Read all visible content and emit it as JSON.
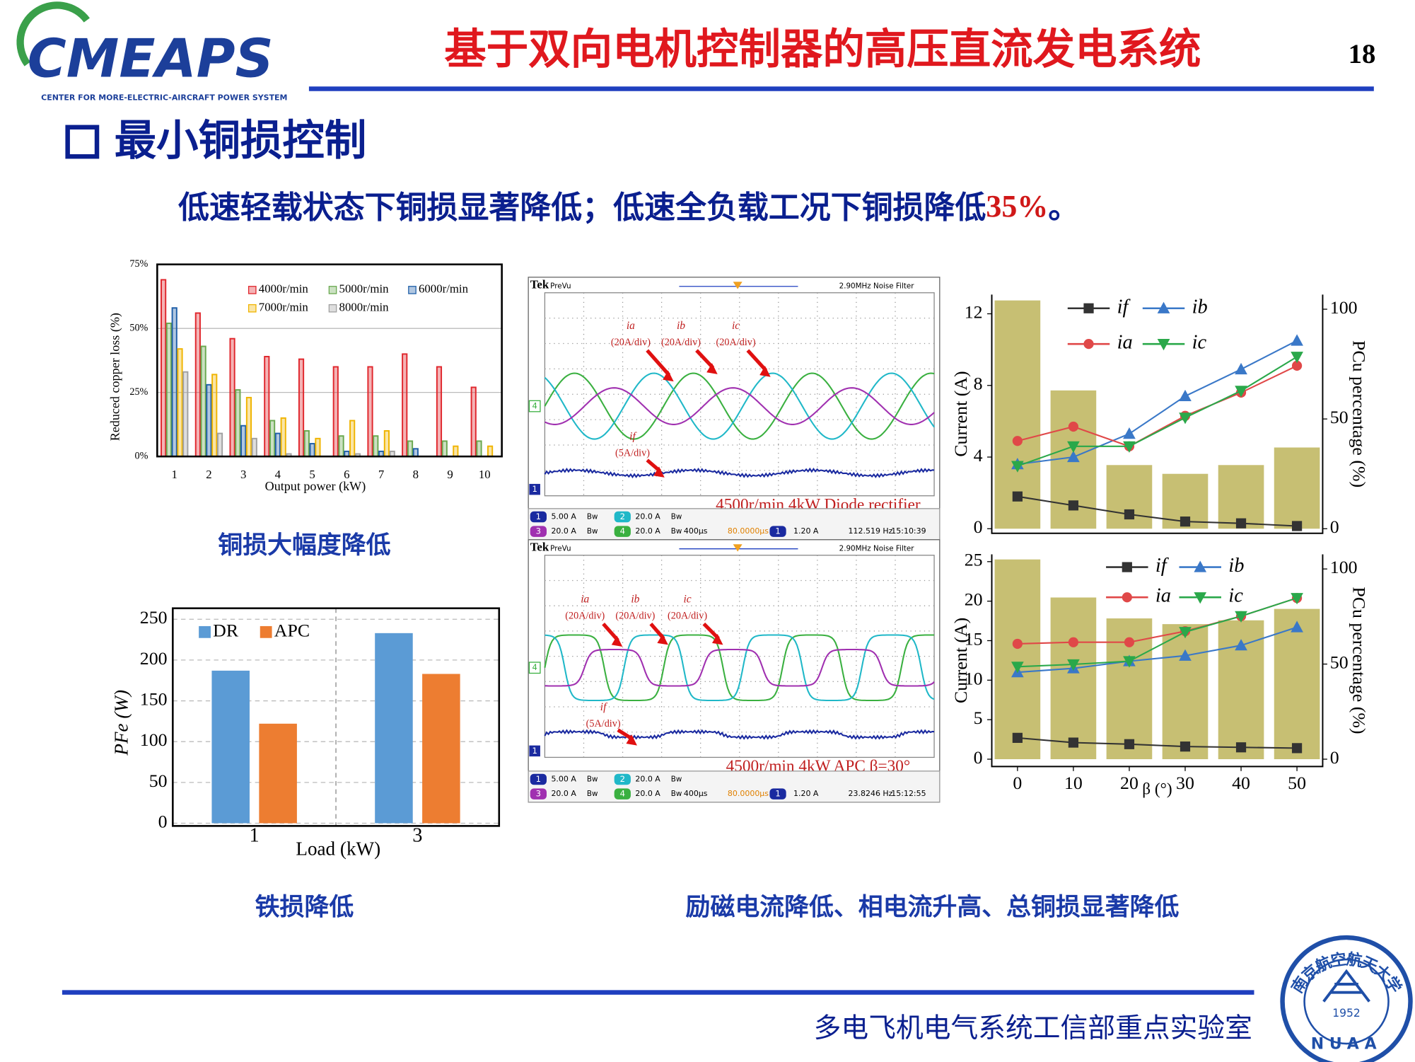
{
  "header": {
    "logo": "CMEAPS",
    "logo_subtitle": "CENTER FOR  MORE-ELECTRIC-AIRCRAFT POWER SYSTEM",
    "title": "基于双向电机控制器的高压直流发电系统",
    "page_number": "18"
  },
  "section_title": "最小铜损控制",
  "summary": {
    "text": "低速轻载状态下铜损显著降低；低速全负载工况下铜损降低",
    "highlight": "35%",
    "end": "。"
  },
  "charts": [
    {
      "type": "bar",
      "xlabel": "Output power (kW)",
      "ylabel": "Reduced copper loss (%)",
      "categories": [
        "1",
        "2",
        "3",
        "4",
        "5",
        "6",
        "7",
        "8",
        "9",
        "10"
      ],
      "ylim": [
        0,
        75
      ],
      "yticks": [
        {
          "value": 0,
          "label": "0%"
        },
        {
          "value": 25,
          "label": "25%"
        },
        {
          "value": 50,
          "label": "50%"
        },
        {
          "value": 75,
          "label": "75%"
        }
      ],
      "grid": true,
      "series": [
        {
          "name": "4000r/min",
          "color": "#e0262c",
          "values": [
            69,
            56,
            46,
            39,
            38,
            35,
            35,
            40,
            35,
            27
          ]
        },
        {
          "name": "5000r/min",
          "color": "#6aa84f",
          "values": [
            52,
            43,
            26,
            14,
            10,
            8,
            8,
            6,
            6,
            6
          ]
        },
        {
          "name": "6000r/min",
          "color": "#1f5fa8",
          "values": [
            58,
            28,
            12,
            9,
            5,
            2,
            2,
            3,
            null,
            null
          ]
        },
        {
          "name": "7000r/min",
          "color": "#f0b400",
          "values": [
            42,
            32,
            23,
            15,
            7,
            14,
            10,
            null,
            4,
            4
          ]
        },
        {
          "name": "8000r/min",
          "color": "#a0a0a0",
          "values": [
            33,
            9,
            7,
            1,
            0,
            1,
            2,
            null,
            null,
            null
          ]
        }
      ]
    },
    {
      "type": "bar",
      "xlabel": "Load (kW)",
      "ylabel": "PFe (W)",
      "categories": [
        "1",
        "3"
      ],
      "ylim": [
        0,
        250
      ],
      "yticks": [
        0,
        50,
        100,
        150,
        200,
        250
      ],
      "grid": true,
      "series": [
        {
          "name": "DR",
          "color": "#5b9bd5",
          "values": [
            187,
            233
          ]
        },
        {
          "name": "APC",
          "color": "#ed7d31",
          "values": [
            122,
            183
          ]
        }
      ]
    },
    {
      "type": "combo",
      "ylabel": "Current (A)",
      "y2label": "PCu percentage (%)",
      "x": [
        0,
        10,
        20,
        30,
        40,
        50
      ],
      "xlim": [
        -4.6,
        54.6
      ],
      "ylim": [
        0,
        12
      ],
      "yticks": [
        0,
        4,
        8,
        12
      ],
      "y2lim": [
        0,
        100
      ],
      "y2ticks": [
        0,
        50,
        100
      ],
      "bars": {
        "color": "#bdb45a",
        "axis": "y2",
        "values": [
          104,
          63,
          29,
          25,
          29,
          37
        ]
      },
      "series": [
        {
          "name": "if",
          "color": "#333333",
          "marker": "square",
          "values": [
            1.8,
            1.3,
            0.8,
            0.4,
            0.3,
            0.15
          ]
        },
        {
          "name": "ib",
          "color": "#3a78c8",
          "marker": "triangle",
          "values": [
            3.6,
            4.0,
            5.3,
            7.4,
            8.9,
            10.5
          ]
        },
        {
          "name": "ia",
          "color": "#e04848",
          "marker": "circle",
          "values": [
            4.9,
            5.7,
            4.6,
            6.3,
            7.6,
            9.1
          ]
        },
        {
          "name": "ic",
          "color": "#2aa84a",
          "marker": "triangle-down",
          "values": [
            3.5,
            4.6,
            4.6,
            6.2,
            7.7,
            9.6
          ]
        }
      ]
    },
    {
      "type": "combo",
      "xlabel": "β (°)",
      "ylabel": "Current (A)",
      "y2label": "PCu percentage (%)",
      "x": [
        0,
        10,
        20,
        30,
        40,
        50
      ],
      "xlim": [
        -4.6,
        54.6
      ],
      "xticks": [
        0,
        10,
        20,
        30,
        40,
        50
      ],
      "ylim": [
        0,
        25
      ],
      "yticks": [
        0,
        5,
        10,
        15,
        20,
        25
      ],
      "y2lim": [
        0,
        100
      ],
      "y2ticks": [
        0,
        50,
        100
      ],
      "bars": {
        "color": "#bdb45a",
        "axis": "y2",
        "values": [
          105,
          85,
          74,
          71,
          73,
          79
        ]
      },
      "series": [
        {
          "name": "if",
          "color": "#333333",
          "marker": "square",
          "values": [
            2.7,
            2.1,
            1.9,
            1.6,
            1.5,
            1.4
          ]
        },
        {
          "name": "ib",
          "color": "#3a78c8",
          "marker": "triangle",
          "values": [
            11.0,
            11.5,
            12.4,
            13.1,
            14.4,
            16.7
          ]
        },
        {
          "name": "ia",
          "color": "#e04848",
          "marker": "circle",
          "values": [
            14.6,
            14.8,
            14.8,
            16.2,
            18.1,
            20.4
          ]
        },
        {
          "name": "ic",
          "color": "#2aa84a",
          "marker": "triangle-down",
          "values": [
            11.7,
            12.0,
            12.4,
            16.1,
            18.1,
            20.4
          ]
        }
      ]
    }
  ],
  "scopes": [
    {
      "brand": "Tek",
      "mode": "PreVu",
      "filter": "2.90MHz  Noise Filter",
      "bw": "Bw",
      "channels": [
        "1",
        "2",
        "3",
        "4"
      ],
      "annotations": [
        {
          "label": "ia",
          "scale": "(20A/div)"
        },
        {
          "label": "ib",
          "scale": "(20A/div)"
        },
        {
          "label": "ic",
          "scale": "(20A/div)"
        },
        {
          "label": "if",
          "scale": "(5A/div)"
        }
      ],
      "caption": "4500r/min 4kW Diode rectifier",
      "status": [
        "5.00 A",
        "20.0 A",
        "20.0 A",
        "20.0 A",
        "400μs",
        "80.0000μs",
        "1.20 A",
        "112.519 Hz",
        "15:10:39"
      ]
    },
    {
      "brand": "Tek",
      "mode": "PreVu",
      "filter": "2.90MHz  Noise Filter",
      "bw": "Bw",
      "channels": [
        "1",
        "2",
        "3",
        "4"
      ],
      "annotations": [
        {
          "label": "ia",
          "scale": "(20A/div)"
        },
        {
          "label": "ib",
          "scale": "(20A/div)"
        },
        {
          "label": "ic",
          "scale": "(20A/div)"
        },
        {
          "label": "if",
          "scale": "(5A/div)"
        }
      ],
      "caption": "4500r/min 4kW APC β=30°",
      "status": [
        "5.00 A",
        "20.0 A",
        "20.0 A",
        "20.0 A",
        "400μs",
        "80.0000μs",
        "1.20 A",
        "23.8246 Hz",
        "15:12:55"
      ]
    }
  ],
  "captions": [
    "铜损大幅度降低",
    "铁损降低",
    "励磁电流降低、相电流升高、总铜损显著降低"
  ],
  "footer": "多电飞机电气系统工信部重点实验室",
  "seal": {
    "name": "南京航空航天大学",
    "year": "1952",
    "abbr": "NUAA"
  }
}
